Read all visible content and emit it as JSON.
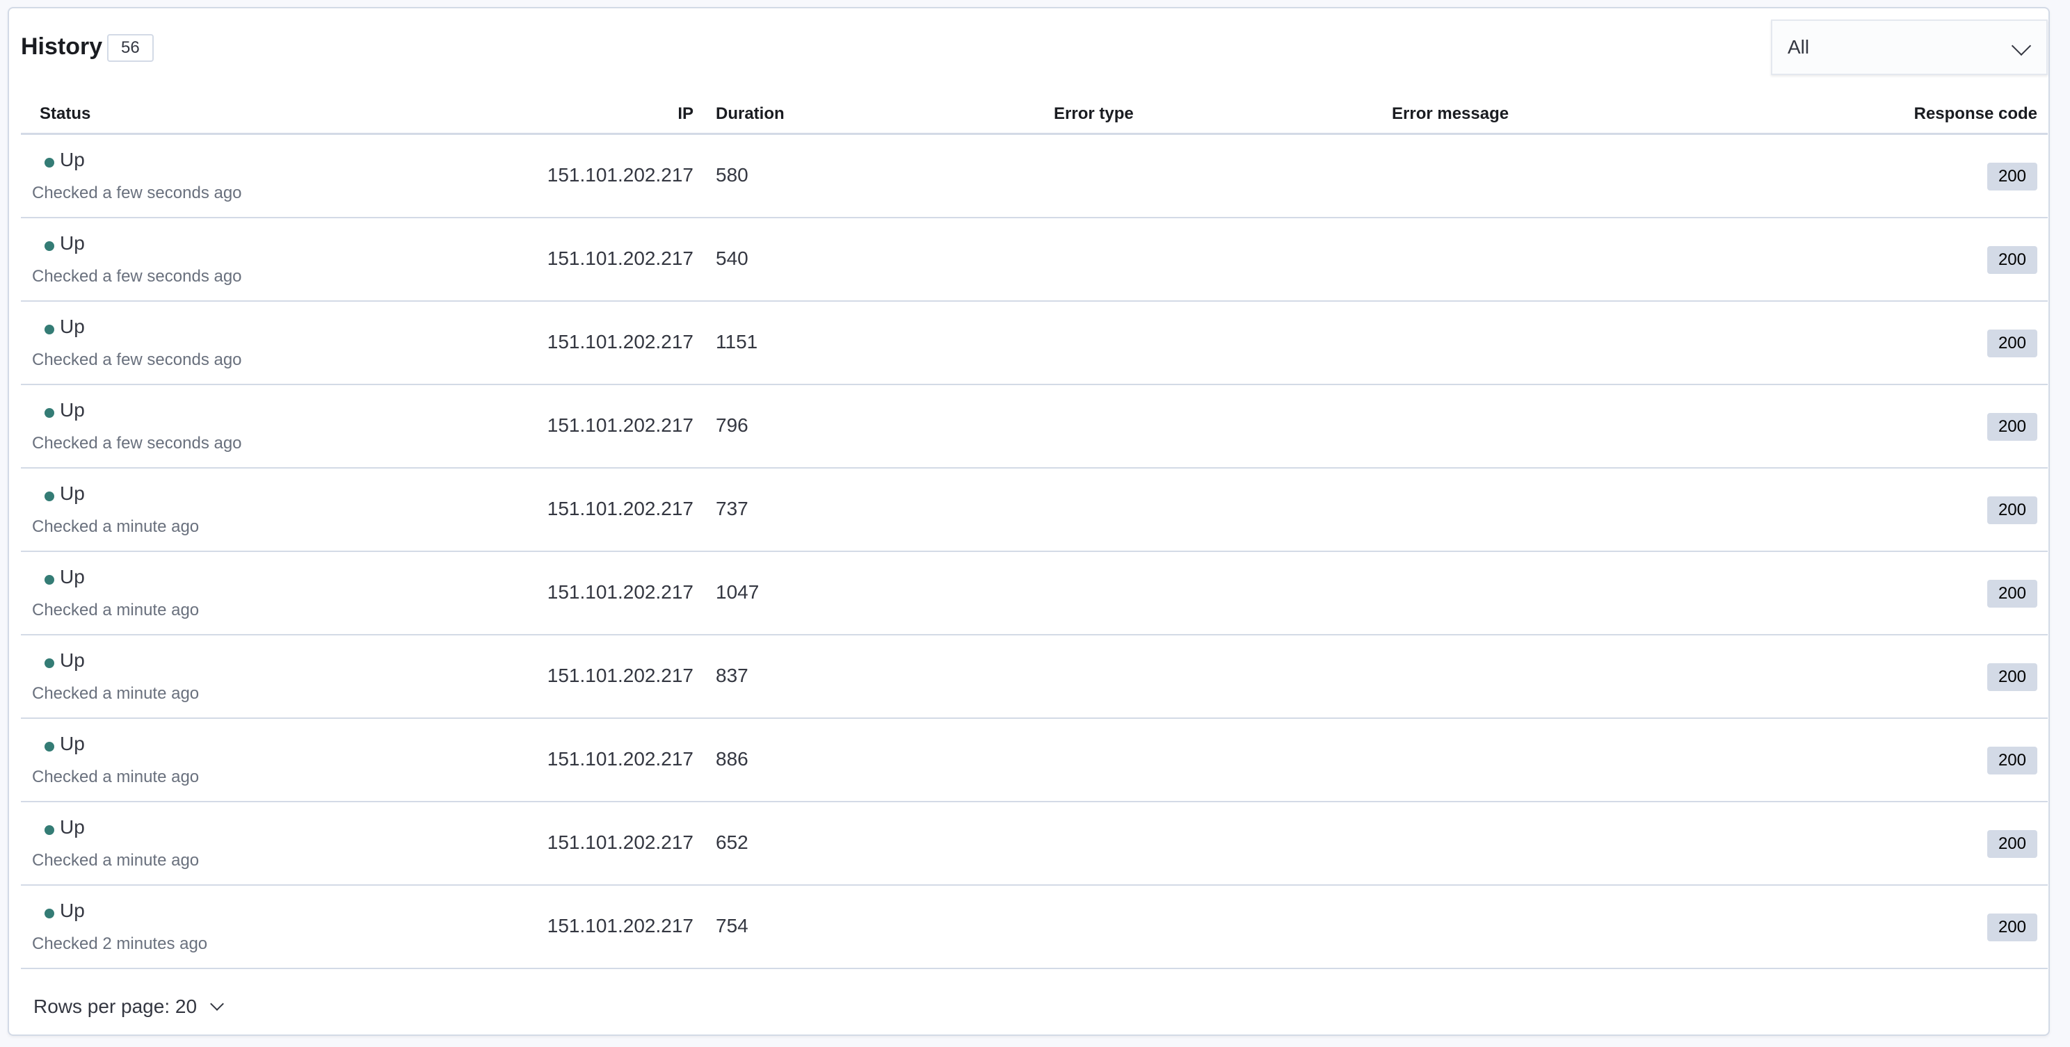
{
  "header": {
    "title": "History",
    "count": "56",
    "filter": {
      "selected": "All"
    }
  },
  "columns": {
    "status": "Status",
    "ip": "IP",
    "duration": "Duration",
    "error_type": "Error type",
    "error_message": "Error message",
    "response_code": "Response code"
  },
  "status_color": "#347c75",
  "rows": [
    {
      "status": "Up",
      "checked": "Checked a few seconds ago",
      "ip": "151.101.202.217",
      "duration": "580",
      "error_type": "",
      "error_message": "",
      "response_code": "200"
    },
    {
      "status": "Up",
      "checked": "Checked a few seconds ago",
      "ip": "151.101.202.217",
      "duration": "540",
      "error_type": "",
      "error_message": "",
      "response_code": "200"
    },
    {
      "status": "Up",
      "checked": "Checked a few seconds ago",
      "ip": "151.101.202.217",
      "duration": "1151",
      "error_type": "",
      "error_message": "",
      "response_code": "200"
    },
    {
      "status": "Up",
      "checked": "Checked a few seconds ago",
      "ip": "151.101.202.217",
      "duration": "796",
      "error_type": "",
      "error_message": "",
      "response_code": "200"
    },
    {
      "status": "Up",
      "checked": "Checked a minute ago",
      "ip": "151.101.202.217",
      "duration": "737",
      "error_type": "",
      "error_message": "",
      "response_code": "200"
    },
    {
      "status": "Up",
      "checked": "Checked a minute ago",
      "ip": "151.101.202.217",
      "duration": "1047",
      "error_type": "",
      "error_message": "",
      "response_code": "200"
    },
    {
      "status": "Up",
      "checked": "Checked a minute ago",
      "ip": "151.101.202.217",
      "duration": "837",
      "error_type": "",
      "error_message": "",
      "response_code": "200"
    },
    {
      "status": "Up",
      "checked": "Checked a minute ago",
      "ip": "151.101.202.217",
      "duration": "886",
      "error_type": "",
      "error_message": "",
      "response_code": "200"
    },
    {
      "status": "Up",
      "checked": "Checked a minute ago",
      "ip": "151.101.202.217",
      "duration": "652",
      "error_type": "",
      "error_message": "",
      "response_code": "200"
    },
    {
      "status": "Up",
      "checked": "Checked 2 minutes ago",
      "ip": "151.101.202.217",
      "duration": "754",
      "error_type": "",
      "error_message": "",
      "response_code": "200"
    }
  ],
  "footer": {
    "rows_per_page": "Rows per page: 20"
  }
}
